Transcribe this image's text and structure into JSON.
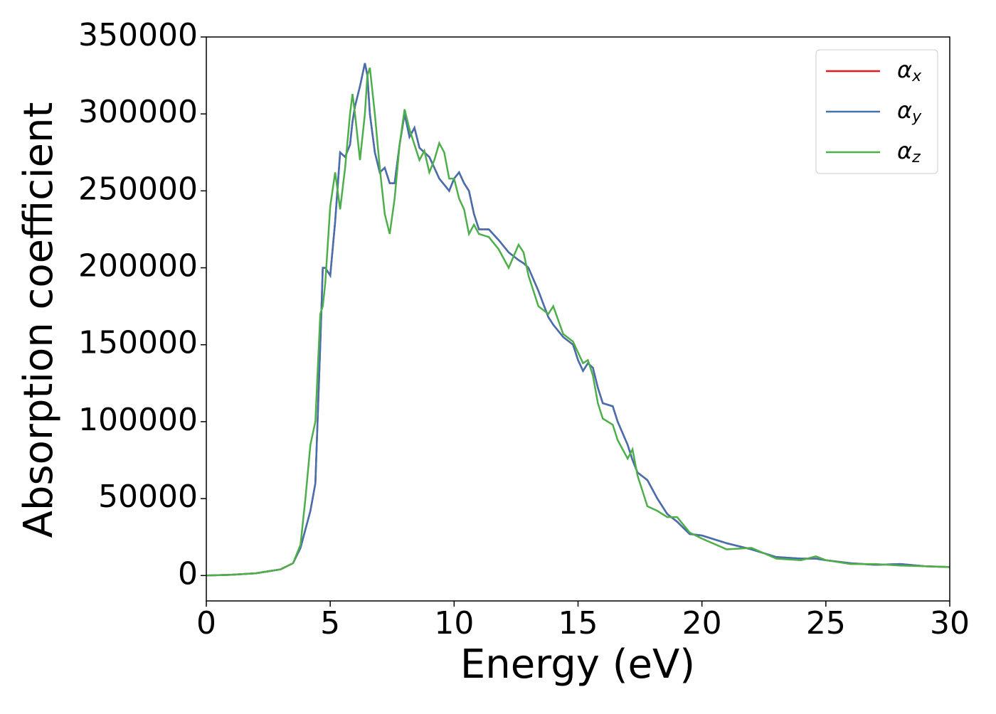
{
  "chart_data": {
    "type": "line",
    "xlabel": "Energy (eV)",
    "ylabel": "Absorption coefficient",
    "x": [
      0,
      1,
      2,
      3,
      3.5,
      3.8,
      4.0,
      4.2,
      4.4,
      4.6,
      4.7,
      4.8,
      5.0,
      5.2,
      5.4,
      5.6,
      5.8,
      5.9,
      6.0,
      6.2,
      6.4,
      6.5,
      6.6,
      6.8,
      7.0,
      7.2,
      7.4,
      7.6,
      7.8,
      8.0,
      8.2,
      8.4,
      8.6,
      8.8,
      9.0,
      9.2,
      9.4,
      9.6,
      9.8,
      10.0,
      10.2,
      10.4,
      10.6,
      10.8,
      11.0,
      11.4,
      11.8,
      12.2,
      12.6,
      12.8,
      13.0,
      13.4,
      13.8,
      14.0,
      14.4,
      14.8,
      15.0,
      15.2,
      15.4,
      15.6,
      15.8,
      16.0,
      16.4,
      16.6,
      17.0,
      17.2,
      17.4,
      17.8,
      18.2,
      18.6,
      19.0,
      19.5,
      20,
      21,
      22,
      23,
      24,
      24.6,
      25,
      26,
      27,
      28,
      29,
      30
    ],
    "series": [
      {
        "name": "αx",
        "color": "#e41a1c",
        "values": [
          0,
          500,
          1500,
          4000,
          8000,
          18000,
          30000,
          42000,
          60000,
          150000,
          200000,
          200000,
          195000,
          230000,
          275000,
          272000,
          280000,
          295000,
          305000,
          318000,
          333000,
          325000,
          300000,
          275000,
          262000,
          265000,
          255000,
          255000,
          280000,
          300000,
          285000,
          291000,
          278000,
          275000,
          272000,
          265000,
          258000,
          254000,
          250000,
          258000,
          262000,
          255000,
          250000,
          235000,
          225000,
          225000,
          218000,
          210000,
          205000,
          203000,
          200000,
          185000,
          168000,
          163000,
          155000,
          150000,
          140000,
          133000,
          138000,
          135000,
          122000,
          112000,
          110000,
          100000,
          85000,
          75000,
          67000,
          62000,
          50000,
          40000,
          35000,
          27000,
          26000,
          21000,
          17000,
          12000,
          11000,
          11000,
          10000,
          8000,
          7000,
          7500,
          6000,
          5500
        ]
      },
      {
        "name": "αy",
        "color": "#4470b0",
        "values": [
          0,
          500,
          1500,
          4000,
          8000,
          18000,
          30000,
          42000,
          60000,
          150000,
          200000,
          200000,
          195000,
          230000,
          275000,
          272000,
          280000,
          295000,
          305000,
          318000,
          333000,
          325000,
          300000,
          275000,
          262000,
          265000,
          255000,
          255000,
          280000,
          300000,
          285000,
          291000,
          278000,
          275000,
          272000,
          265000,
          258000,
          254000,
          250000,
          258000,
          262000,
          255000,
          250000,
          235000,
          225000,
          225000,
          218000,
          210000,
          205000,
          203000,
          200000,
          185000,
          168000,
          163000,
          155000,
          150000,
          140000,
          133000,
          138000,
          135000,
          122000,
          112000,
          110000,
          100000,
          85000,
          75000,
          67000,
          62000,
          50000,
          40000,
          35000,
          27000,
          26000,
          21000,
          17000,
          12000,
          11000,
          11000,
          10000,
          8000,
          7000,
          7500,
          6000,
          5500
        ]
      },
      {
        "name": "αz",
        "color": "#4daf4a",
        "values": [
          0,
          500,
          1500,
          4000,
          8000,
          20000,
          50000,
          85000,
          100000,
          170000,
          175000,
          190000,
          240000,
          262000,
          238000,
          265000,
          300000,
          313000,
          300000,
          270000,
          300000,
          325000,
          330000,
          300000,
          265000,
          235000,
          222000,
          245000,
          280000,
          303000,
          290000,
          280000,
          270000,
          276000,
          262000,
          270000,
          281000,
          275000,
          258000,
          258000,
          245000,
          238000,
          222000,
          228000,
          222000,
          220000,
          212000,
          200000,
          215000,
          210000,
          195000,
          175000,
          170000,
          175000,
          157000,
          152000,
          145000,
          138000,
          140000,
          130000,
          112000,
          102000,
          98000,
          88000,
          76000,
          82000,
          65000,
          45000,
          42000,
          38000,
          38000,
          28000,
          24000,
          17000,
          18000,
          11000,
          10000,
          12500,
          10000,
          7500,
          7500,
          6500,
          6000,
          5500
        ]
      }
    ],
    "xlim": [
      0,
      30
    ],
    "xticks": [
      0,
      5,
      10,
      15,
      20,
      25,
      30
    ],
    "ylim": [
      -16500,
      350000
    ],
    "yticks": [
      0,
      50000,
      100000,
      150000,
      200000,
      250000,
      300000,
      350000
    ],
    "legend": "upper right"
  }
}
